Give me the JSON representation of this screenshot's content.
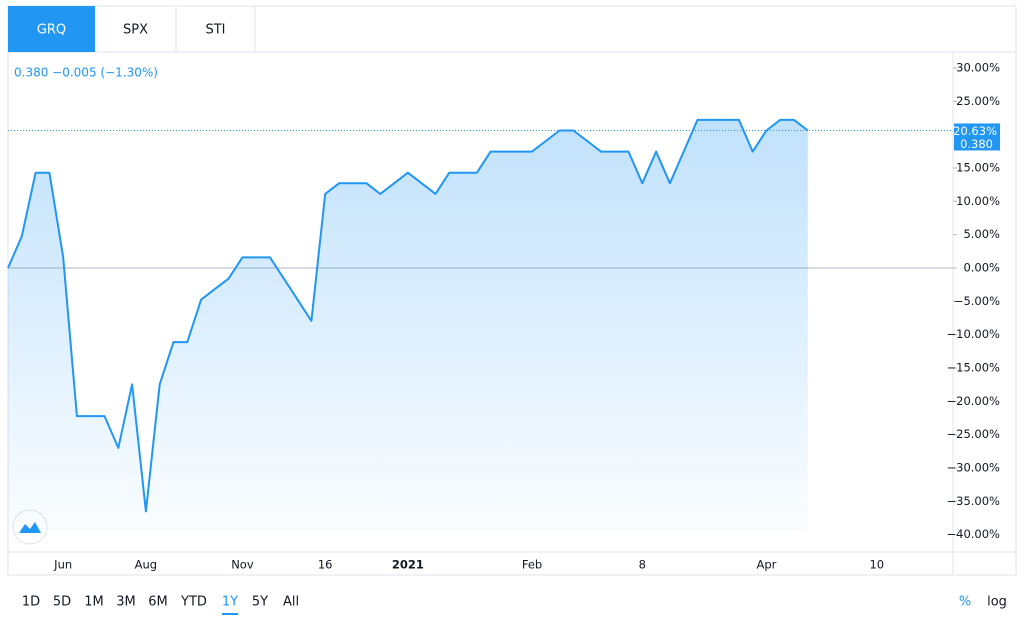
{
  "tabs": [
    "GRQ",
    "SPX",
    "STI"
  ],
  "ranges": [
    "1D",
    "5D",
    "1M",
    "3M",
    "6M",
    "YTD",
    "1Y",
    "5Y",
    "All"
  ],
  "selected_range": "1Y",
  "scale_options": [
    "%",
    "log"
  ],
  "chart_data": {
    "type": "area",
    "header": "0.380 −0.005 (−1.30%)",
    "categories": [
      null,
      null,
      null,
      null,
      "Jun",
      null,
      null,
      null,
      null,
      null,
      "Aug",
      null,
      null,
      null,
      null,
      null,
      null,
      "Nov",
      null,
      null,
      null,
      null,
      null,
      "16",
      null,
      null,
      null,
      null,
      null,
      "2021",
      null,
      null,
      null,
      null,
      null,
      null,
      null,
      null,
      "Feb",
      null,
      null,
      null,
      null,
      null,
      null,
      null,
      "8",
      null,
      null,
      null,
      null,
      null,
      null,
      null,
      null,
      "Apr",
      null,
      null,
      null,
      null,
      null,
      null,
      null,
      "10",
      null,
      null,
      null,
      null,
      null
    ],
    "series": [
      {
        "name": "GRQ",
        "color": "#2196f3",
        "values": [
          0,
          4.76,
          14.29,
          14.29,
          1.59,
          -22.22,
          -22.22,
          -22.22,
          -26.98,
          -17.46,
          -36.51,
          -17.46,
          -11.11,
          -11.11,
          -4.76,
          -3.17,
          -1.59,
          1.59,
          1.59,
          1.59,
          -1.59,
          -4.76,
          -7.94,
          11.11,
          12.7,
          12.7,
          12.7,
          11.11,
          12.7,
          14.29,
          12.7,
          11.11,
          14.29,
          14.29,
          14.29,
          17.46,
          17.46,
          17.46,
          17.46,
          19.05,
          20.63,
          20.63,
          19.05,
          17.46,
          17.46,
          17.46,
          12.7,
          17.46,
          12.7,
          17.46,
          22.22,
          22.22,
          22.22,
          22.22,
          17.46,
          20.63,
          22.22,
          22.22,
          20.63,
          null,
          null,
          null,
          null,
          null,
          null,
          null,
          null,
          null,
          null
        ]
      }
    ],
    "last_value_label": "20.63%",
    "last_price": "0.380",
    "ylim": [
      -42.6,
      32.25
    ],
    "yticks": [
      {
        "value": 30,
        "label": "30.00%"
      },
      {
        "value": 25,
        "label": "25.00%"
      },
      {
        "value": 20,
        "label": "20.00%"
      },
      {
        "value": 15,
        "label": "15.00%"
      },
      {
        "value": 10,
        "label": "10.00%"
      },
      {
        "value": 5,
        "label": "5.00%"
      },
      {
        "value": 0,
        "label": "0.00%"
      },
      {
        "value": -5,
        "label": "−5.00%"
      },
      {
        "value": -10,
        "label": "−10.00%"
      },
      {
        "value": -15,
        "label": "−15.00%"
      },
      {
        "value": -20,
        "label": "−20.00%"
      },
      {
        "value": -25,
        "label": "−25.00%"
      },
      {
        "value": -30,
        "label": "−30.00%"
      },
      {
        "value": -35,
        "label": "−35.00%"
      },
      {
        "value": -40,
        "label": "−40.00%"
      }
    ],
    "grid": false,
    "baseline": 0
  }
}
